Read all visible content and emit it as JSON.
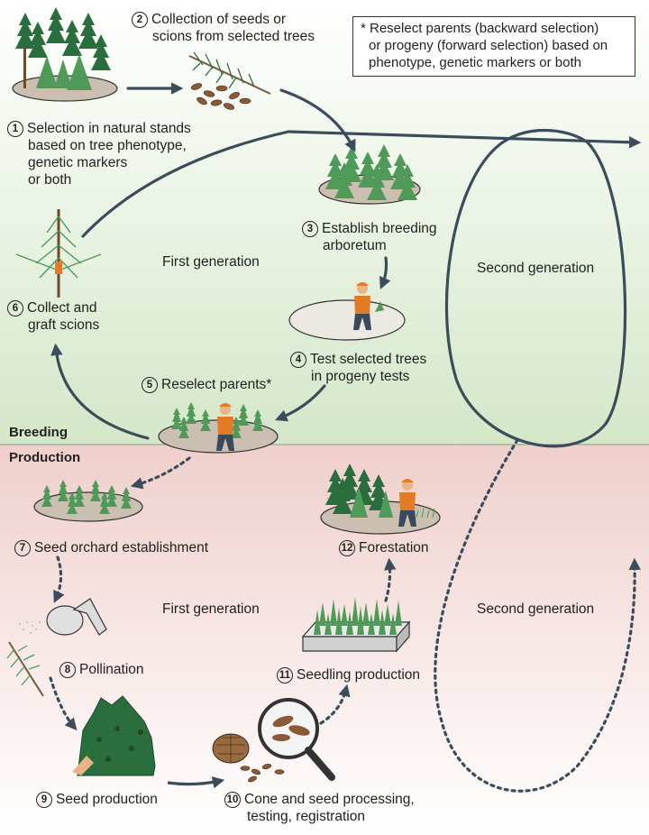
{
  "sections": {
    "breeding": "Breeding",
    "production": "Production"
  },
  "generations": {
    "breeding_first": "First generation",
    "breeding_second": "Second generation",
    "production_first": "First generation",
    "production_second": "Second generation"
  },
  "note": {
    "lines": [
      "* Reselect parents (backward selection)",
      "or progeny (forward selection) based on",
      "phenotype, genetic markers or both"
    ]
  },
  "steps": [
    {
      "number": "1",
      "lines": [
        "Selection in natural stands",
        "based on tree phenotype,",
        "genetic markers",
        "or both"
      ]
    },
    {
      "number": "2",
      "lines": [
        "Collection of seeds or",
        "scions from selected trees"
      ]
    },
    {
      "number": "3",
      "lines": [
        "Establish breeding",
        "arboretum"
      ]
    },
    {
      "number": "4",
      "lines": [
        "Test selected trees",
        "in progeny tests"
      ]
    },
    {
      "number": "5",
      "lines": [
        "Reselect parents*"
      ]
    },
    {
      "number": "6",
      "lines": [
        "Collect and",
        "graft scions"
      ]
    },
    {
      "number": "7",
      "lines": [
        "Seed orchard establishment"
      ]
    },
    {
      "number": "8",
      "lines": [
        "Pollination"
      ]
    },
    {
      "number": "9",
      "lines": [
        "Seed production"
      ]
    },
    {
      "number": "10",
      "lines": [
        "Cone and seed processing,",
        "testing, registration"
      ]
    },
    {
      "number": "11",
      "lines": [
        "Seedling production"
      ]
    },
    {
      "number": "12",
      "lines": [
        "Forestation"
      ]
    }
  ],
  "colors": {
    "breeding_bg_top": "#ffffff",
    "breeding_bg_bottom": "#d4e7c8",
    "production_bg_top": "#efcfcb",
    "production_bg_bottom": "#ffffff",
    "arrow": "#3b4c5a",
    "tree_dark": "#2b6e3e",
    "tree_light": "#4f9a58",
    "plot": "#cbbfb2",
    "worker": "#e37a24"
  },
  "icons": [
    "tree-stand-icon",
    "pine-branch-icon",
    "seed-icon",
    "arboretum-icon",
    "worker-icon",
    "graft-icon",
    "orchard-icon",
    "pollinator-icon",
    "shrub-icon",
    "pine-cone-icon",
    "magnifier-icon",
    "seedling-tray-icon",
    "forest-plot-icon"
  ]
}
